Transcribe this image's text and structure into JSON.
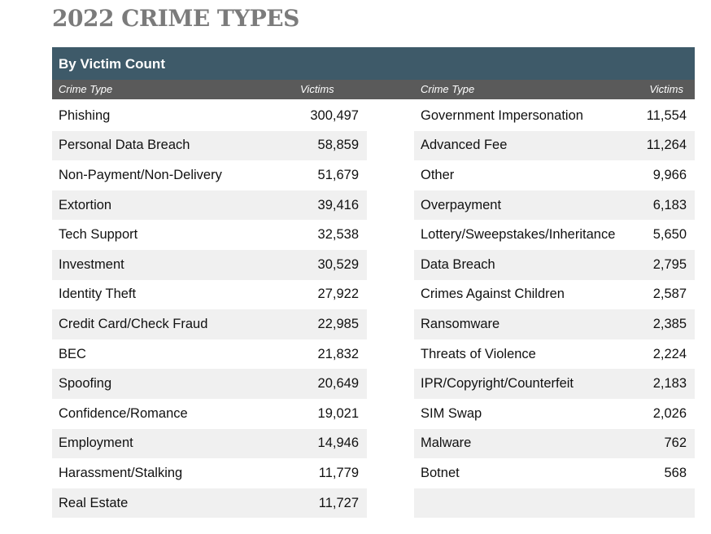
{
  "title": "2022 CRIME TYPES",
  "band_label": "By Victim Count",
  "headers": {
    "crime_type": "Crime Type",
    "victims": "Victims"
  },
  "colors": {
    "band": "#3e5a69",
    "header": "#5a5a5a",
    "title": "#7b7b7b",
    "row_shade": "#f0f0f0"
  },
  "left_rows": [
    {
      "type": "Phishing",
      "victims": "300,497"
    },
    {
      "type": "Personal Data Breach",
      "victims": "58,859"
    },
    {
      "type": "Non-Payment/Non-Delivery",
      "victims": "51,679"
    },
    {
      "type": "Extortion",
      "victims": "39,416"
    },
    {
      "type": "Tech Support",
      "victims": "32,538"
    },
    {
      "type": "Investment",
      "victims": "30,529"
    },
    {
      "type": "Identity Theft",
      "victims": "27,922"
    },
    {
      "type": "Credit Card/Check Fraud",
      "victims": "22,985"
    },
    {
      "type": "BEC",
      "victims": "21,832"
    },
    {
      "type": "Spoofing",
      "victims": "20,649"
    },
    {
      "type": "Confidence/Romance",
      "victims": "19,021"
    },
    {
      "type": "Employment",
      "victims": "14,946"
    },
    {
      "type": "Harassment/Stalking",
      "victims": "11,779"
    },
    {
      "type": "Real Estate",
      "victims": "11,727"
    }
  ],
  "right_rows": [
    {
      "type": "Government Impersonation",
      "victims": "11,554"
    },
    {
      "type": "Advanced Fee",
      "victims": "11,264"
    },
    {
      "type": "Other",
      "victims": "9,966"
    },
    {
      "type": "Overpayment",
      "victims": "6,183"
    },
    {
      "type": "Lottery/Sweepstakes/Inheritance",
      "victims": "5,650"
    },
    {
      "type": "Data Breach",
      "victims": "2,795"
    },
    {
      "type": "Crimes Against Children",
      "victims": "2,587"
    },
    {
      "type": "Ransomware",
      "victims": "2,385"
    },
    {
      "type": "Threats of Violence",
      "victims": "2,224"
    },
    {
      "type": "IPR/Copyright/Counterfeit",
      "victims": "2,183"
    },
    {
      "type": "SIM Swap",
      "victims": "2,026"
    },
    {
      "type": "Malware",
      "victims": "762"
    },
    {
      "type": "Botnet",
      "victims": "568"
    },
    {
      "type": "",
      "victims": ""
    }
  ]
}
